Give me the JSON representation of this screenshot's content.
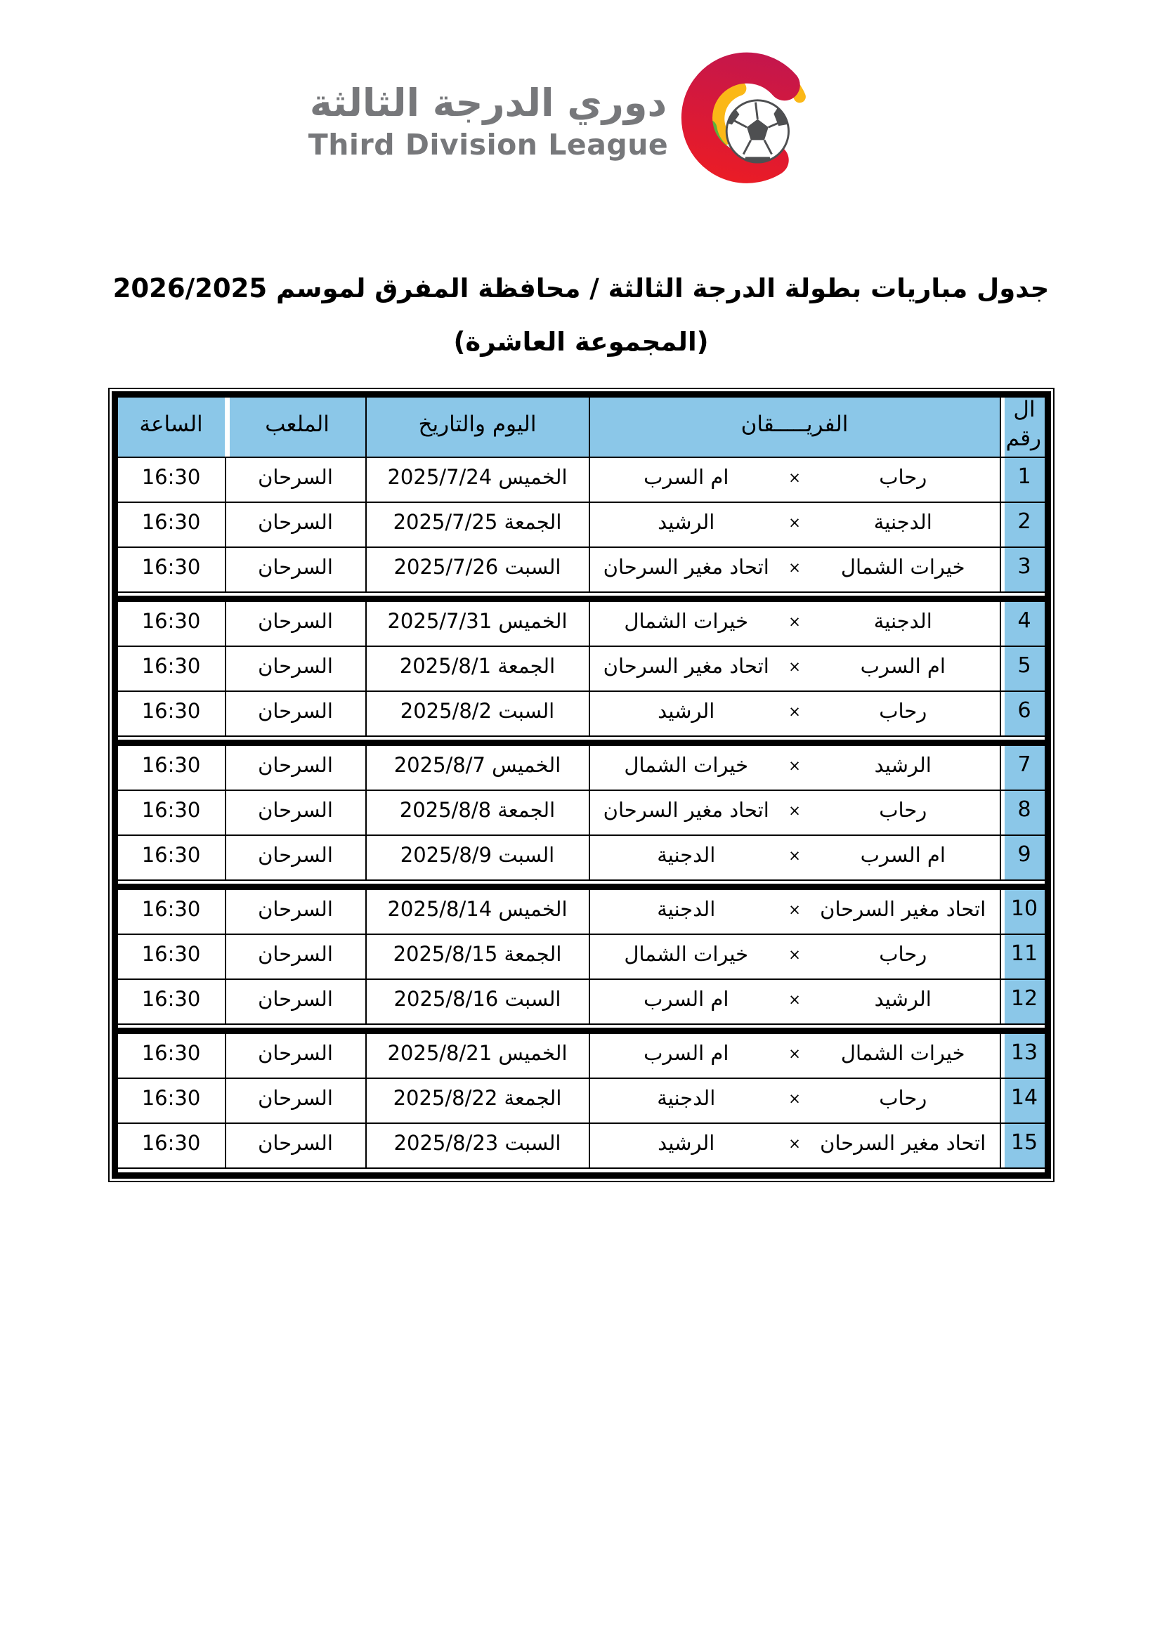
{
  "logo": {
    "arabic_name": "دوري الدرجة الثالثة",
    "english_name": "Third Division League",
    "colors": {
      "text_gray": "#77787b",
      "crimson": "#c2164e",
      "red": "#ec1c24",
      "yellow": "#fbb817",
      "green": "#5cb13c",
      "ball_dark": "#4e4f51"
    }
  },
  "title": {
    "line1": "جدول مباريات بطولة الدرجة الثالثة / محافظة المفرق لموسم 2026/2025",
    "line2": "(المجموعة العاشرة)"
  },
  "table": {
    "header_bg": "#8bc7e8",
    "border_color": "#000000",
    "headers": {
      "number": "ال رقم",
      "teams": "الفريـــــقان",
      "datetime": "اليوم والتاريخ",
      "venue": "الملعب",
      "time": "الساعة"
    },
    "groups": [
      {
        "rows": [
          {
            "num": "1",
            "team1": "رحاب",
            "vs": "×",
            "team2": "ام السرب",
            "date": "الخميس 2025/7/24",
            "venue": "السرحان",
            "time": "16:30"
          },
          {
            "num": "2",
            "team1": "الدجنية",
            "vs": "×",
            "team2": "الرشيد",
            "date": "الجمعة 2025/7/25",
            "venue": "السرحان",
            "time": "16:30"
          },
          {
            "num": "3",
            "team1": "خيرات الشمال",
            "vs": "×",
            "team2": "اتحاد مغير السرحان",
            "date": "السبت 2025/7/26",
            "venue": "السرحان",
            "time": "16:30"
          }
        ]
      },
      {
        "rows": [
          {
            "num": "4",
            "team1": "الدجنية",
            "vs": "×",
            "team2": "خيرات الشمال",
            "date": "الخميس 2025/7/31",
            "venue": "السرحان",
            "time": "16:30"
          },
          {
            "num": "5",
            "team1": "ام السرب",
            "vs": "×",
            "team2": "اتحاد مغير السرحان",
            "date": "الجمعة 2025/8/1",
            "venue": "السرحان",
            "time": "16:30"
          },
          {
            "num": "6",
            "team1": "رحاب",
            "vs": "×",
            "team2": "الرشيد",
            "date": "السبت 2025/8/2",
            "venue": "السرحان",
            "time": "16:30"
          }
        ]
      },
      {
        "rows": [
          {
            "num": "7",
            "team1": "الرشيد",
            "vs": "×",
            "team2": "خيرات الشمال",
            "date": "الخميس 2025/8/7",
            "venue": "السرحان",
            "time": "16:30"
          },
          {
            "num": "8",
            "team1": "رحاب",
            "vs": "×",
            "team2": "اتحاد مغير السرحان",
            "date": "الجمعة 2025/8/8",
            "venue": "السرحان",
            "time": "16:30"
          },
          {
            "num": "9",
            "team1": "ام السرب",
            "vs": "×",
            "team2": "الدجنية",
            "date": "السبت 2025/8/9",
            "venue": "السرحان",
            "time": "16:30"
          }
        ]
      },
      {
        "rows": [
          {
            "num": "10",
            "team1": "اتحاد مغير السرحان",
            "vs": "×",
            "team2": "الدجنية",
            "date": "الخميس 2025/8/14",
            "venue": "السرحان",
            "time": "16:30"
          },
          {
            "num": "11",
            "team1": "رحاب",
            "vs": "×",
            "team2": "خيرات الشمال",
            "date": "الجمعة 2025/8/15",
            "venue": "السرحان",
            "time": "16:30"
          },
          {
            "num": "12",
            "team1": "الرشيد",
            "vs": "×",
            "team2": "ام السرب",
            "date": "السبت 2025/8/16",
            "venue": "السرحان",
            "time": "16:30"
          }
        ]
      },
      {
        "rows": [
          {
            "num": "13",
            "team1": "خيرات الشمال",
            "vs": "×",
            "team2": "ام السرب",
            "date": "الخميس 2025/8/21",
            "venue": "السرحان",
            "time": "16:30"
          },
          {
            "num": "14",
            "team1": "رحاب",
            "vs": "×",
            "team2": "الدجنية",
            "date": "الجمعة 2025/8/22",
            "venue": "السرحان",
            "time": "16:30"
          },
          {
            "num": "15",
            "team1": "اتحاد مغير السرحان",
            "vs": "×",
            "team2": "الرشيد",
            "date": "السبت 2025/8/23",
            "venue": "السرحان",
            "time": "16:30"
          }
        ]
      }
    ]
  }
}
